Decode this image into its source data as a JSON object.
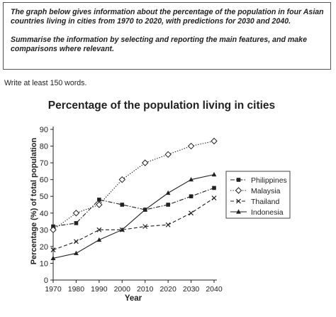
{
  "task": {
    "paragraph1": "The graph below gives information about the percentage of the population in four Asian countries living in cities from 1970 to 2020, with predictions for 2030 and 2040.",
    "paragraph2": "Summarise the information by selecting and reporting the main features, and make comparisons where relevant."
  },
  "word_count_note": "Write at least 150 words.",
  "chart_data": {
    "type": "line",
    "title": "Percentage of the population living in cities",
    "xlabel": "Year",
    "ylabel": "Percentage (%) of total population",
    "x": [
      1970,
      1980,
      1990,
      2000,
      2010,
      2020,
      2030,
      2040
    ],
    "ylim": [
      0,
      90
    ],
    "yticks": [
      0,
      10,
      20,
      30,
      40,
      50,
      60,
      70,
      80,
      90
    ],
    "grid": false,
    "legend_position": "right",
    "series": [
      {
        "name": "Philippines",
        "marker": "square",
        "dash": "dash-dot",
        "values": [
          32,
          34,
          48,
          45,
          42,
          45,
          50,
          55
        ]
      },
      {
        "name": "Malaysia",
        "marker": "diamond",
        "dash": "dotted",
        "values": [
          30,
          40,
          45,
          60,
          70,
          75,
          80,
          83
        ]
      },
      {
        "name": "Thailand",
        "marker": "x",
        "dash": "dashed",
        "values": [
          18,
          23,
          30,
          30,
          32,
          33,
          40,
          49
        ]
      },
      {
        "name": "Indonesia",
        "marker": "triangle",
        "dash": "solid",
        "values": [
          13,
          16,
          24,
          30,
          42,
          52,
          60,
          63
        ]
      }
    ]
  }
}
